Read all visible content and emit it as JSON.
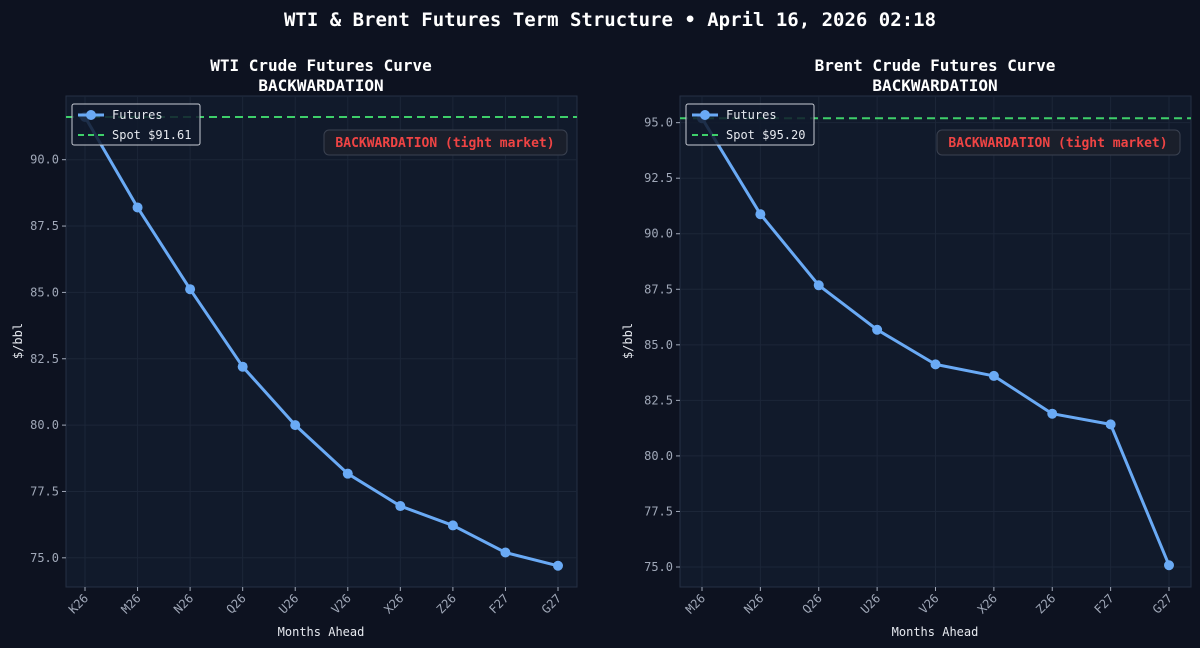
{
  "suptitle": "WTI & Brent Futures Term Structure • April 16, 2026 02:18",
  "colors": {
    "background": "#0d1220",
    "axes_bg": "#111a2b",
    "line": "#6aaaf5",
    "spot": "#3ecf6a",
    "annotation": "#ef4444",
    "text": "#e6e9ef",
    "tick": "#a0a8b8",
    "grid": "#1c2638"
  },
  "chart_data": [
    {
      "type": "line",
      "title": "WTI Crude Futures Curve",
      "subtitle": "BACKWARDATION",
      "xlabel": "Months Ahead",
      "ylabel": "$/bbl",
      "categories": [
        "K26",
        "M26",
        "N26",
        "Q26",
        "U26",
        "V26",
        "X26",
        "Z26",
        "F27",
        "G27"
      ],
      "series": [
        {
          "name": "Futures",
          "values": [
            91.61,
            88.2,
            85.12,
            82.2,
            80.0,
            78.17,
            76.95,
            76.22,
            75.2,
            74.7
          ]
        }
      ],
      "spot": {
        "label": "Spot $91.61",
        "value": 91.61
      },
      "annotation": "BACKWARDATION (tight market)",
      "ylim": [
        73.9,
        92.4
      ],
      "yticks": [
        "75.0",
        "77.5",
        "80.0",
        "82.5",
        "85.0",
        "87.5",
        "90.0"
      ],
      "grid": true,
      "legend": "top-left"
    },
    {
      "type": "line",
      "title": "Brent Crude Futures Curve",
      "subtitle": "BACKWARDATION",
      "xlabel": "Months Ahead",
      "ylabel": "$/bbl",
      "categories": [
        "M26",
        "N26",
        "Q26",
        "U26",
        "V26",
        "X26",
        "Z26",
        "F27",
        "G27"
      ],
      "series": [
        {
          "name": "Futures",
          "values": [
            95.2,
            90.88,
            87.68,
            85.68,
            84.12,
            83.6,
            81.9,
            81.42,
            75.08
          ]
        }
      ],
      "spot": {
        "label": "Spot $95.20",
        "value": 95.2
      },
      "annotation": "BACKWARDATION (tight market)",
      "ylim": [
        74.1,
        96.2
      ],
      "yticks": [
        "75.0",
        "77.5",
        "80.0",
        "82.5",
        "85.0",
        "87.5",
        "90.0",
        "92.5",
        "95.0"
      ],
      "grid": true,
      "legend": "top-left"
    }
  ]
}
